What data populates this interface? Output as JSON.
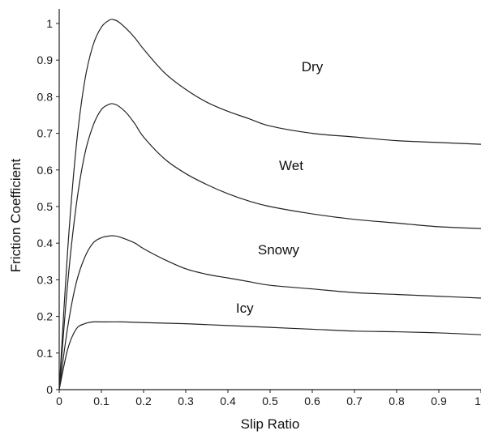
{
  "chart_data": {
    "type": "line",
    "title": "",
    "xlabel": "Slip Ratio",
    "ylabel": "Friction Coefficient",
    "xlim": [
      0,
      1
    ],
    "ylim": [
      0,
      1.05
    ],
    "grid": false,
    "x_ticks": [
      "0",
      "0.1",
      "0.2",
      "0.3",
      "0.4",
      "0.5",
      "0.6",
      "0.7",
      "0.8",
      "0.9",
      "1"
    ],
    "y_ticks": [
      "0",
      "0.1",
      "0.2",
      "0.3",
      "0.4",
      "0.5",
      "0.6",
      "0.7",
      "0.8",
      "0.9",
      "1"
    ],
    "series": [
      {
        "name": "Dry",
        "x": [
          0,
          0.02,
          0.04,
          0.06,
          0.08,
          0.1,
          0.12,
          0.13,
          0.14,
          0.16,
          0.18,
          0.2,
          0.25,
          0.3,
          0.35,
          0.4,
          0.45,
          0.5,
          0.6,
          0.7,
          0.8,
          0.9,
          1.0
        ],
        "y": [
          0,
          0.38,
          0.66,
          0.84,
          0.94,
          0.99,
          1.01,
          1.01,
          1.005,
          0.985,
          0.96,
          0.93,
          0.865,
          0.82,
          0.785,
          0.76,
          0.74,
          0.72,
          0.7,
          0.69,
          0.68,
          0.675,
          0.67
        ]
      },
      {
        "name": "Wet",
        "x": [
          0,
          0.02,
          0.04,
          0.06,
          0.08,
          0.1,
          0.12,
          0.13,
          0.14,
          0.16,
          0.18,
          0.2,
          0.25,
          0.3,
          0.35,
          0.4,
          0.45,
          0.5,
          0.6,
          0.7,
          0.8,
          0.9,
          1.0
        ],
        "y": [
          0,
          0.29,
          0.5,
          0.64,
          0.72,
          0.765,
          0.78,
          0.78,
          0.775,
          0.755,
          0.725,
          0.69,
          0.63,
          0.59,
          0.56,
          0.535,
          0.515,
          0.5,
          0.48,
          0.465,
          0.455,
          0.445,
          0.44
        ]
      },
      {
        "name": "Snowy",
        "x": [
          0,
          0.02,
          0.04,
          0.06,
          0.08,
          0.1,
          0.12,
          0.13,
          0.14,
          0.16,
          0.18,
          0.2,
          0.25,
          0.3,
          0.35,
          0.4,
          0.45,
          0.5,
          0.6,
          0.7,
          0.8,
          0.9,
          1.0
        ],
        "y": [
          0,
          0.17,
          0.29,
          0.36,
          0.4,
          0.415,
          0.42,
          0.42,
          0.418,
          0.41,
          0.4,
          0.385,
          0.355,
          0.33,
          0.315,
          0.305,
          0.295,
          0.285,
          0.275,
          0.265,
          0.26,
          0.255,
          0.25
        ]
      },
      {
        "name": "Icy",
        "x": [
          0,
          0.02,
          0.04,
          0.06,
          0.08,
          0.1,
          0.15,
          0.2,
          0.3,
          0.4,
          0.5,
          0.6,
          0.7,
          0.8,
          0.9,
          1.0
        ],
        "y": [
          0,
          0.11,
          0.165,
          0.18,
          0.185,
          0.185,
          0.185,
          0.183,
          0.18,
          0.175,
          0.17,
          0.165,
          0.16,
          0.158,
          0.155,
          0.15
        ]
      }
    ],
    "annotations": [
      "Dry",
      "Wet",
      "Snowy",
      "Icy"
    ]
  }
}
